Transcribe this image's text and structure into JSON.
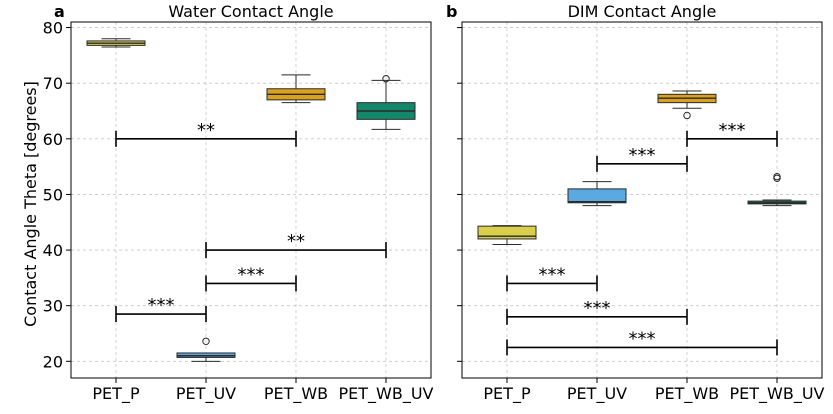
{
  "figure": {
    "ylabel": "Contact Angle Theta [degrees]"
  },
  "chart_data": [
    {
      "type": "box",
      "panel": "a",
      "title": "Water Contact Angle",
      "categories": [
        "PET_P",
        "PET_UV",
        "PET_WB",
        "PET_WB_UV"
      ],
      "ylim": [
        17,
        81
      ],
      "yticks": [
        20,
        30,
        40,
        50,
        60,
        70,
        80
      ],
      "grid": true,
      "colors": [
        "#d9cf4c",
        "#5aa9e0",
        "#d9a11e",
        "#12876a"
      ],
      "boxes": [
        {
          "category": "PET_P",
          "min": 76.5,
          "q1": 76.8,
          "median": 77.2,
          "q3": 77.6,
          "max": 78.0,
          "outliers": []
        },
        {
          "category": "PET_UV",
          "min": 20.0,
          "q1": 20.7,
          "median": 21.0,
          "q3": 21.5,
          "max": 21.5,
          "outliers": [
            23.6
          ]
        },
        {
          "category": "PET_WB",
          "min": 66.5,
          "q1": 67.0,
          "median": 68.0,
          "q3": 69.0,
          "max": 71.5,
          "outliers": []
        },
        {
          "category": "PET_WB_UV",
          "min": 61.7,
          "q1": 63.5,
          "median": 65.0,
          "q3": 66.5,
          "max": 70.5,
          "outliers": [
            70.8
          ]
        }
      ],
      "annotations": [
        {
          "from": "PET_P",
          "to": "PET_WB",
          "y": 60,
          "label": "**"
        },
        {
          "from": "PET_UV",
          "to": "PET_WB_UV",
          "y": 40,
          "label": "**"
        },
        {
          "from": "PET_UV",
          "to": "PET_WB",
          "y": 34,
          "label": "***"
        },
        {
          "from": "PET_P",
          "to": "PET_UV",
          "y": 28.5,
          "label": "***"
        }
      ]
    },
    {
      "type": "box",
      "panel": "b",
      "title": "DIM Contact Angle",
      "categories": [
        "PET_P",
        "PET_UV",
        "PET_WB",
        "PET_WB_UV"
      ],
      "ylim": [
        17,
        81
      ],
      "yticks": [
        20,
        30,
        40,
        50,
        60,
        70,
        80
      ],
      "grid": true,
      "colors": [
        "#d9cf4c",
        "#5aa9e0",
        "#d9a11e",
        "#12876a"
      ],
      "boxes": [
        {
          "category": "PET_P",
          "min": 41.0,
          "q1": 42.0,
          "median": 42.5,
          "q3": 44.3,
          "max": 44.4,
          "outliers": []
        },
        {
          "category": "PET_UV",
          "min": 48.0,
          "q1": 48.5,
          "median": 48.7,
          "q3": 51.0,
          "max": 52.3,
          "outliers": []
        },
        {
          "category": "PET_WB",
          "min": 65.5,
          "q1": 66.5,
          "median": 67.3,
          "q3": 68.0,
          "max": 68.6,
          "outliers": [
            64.2
          ]
        },
        {
          "category": "PET_WB_UV",
          "min": 48.0,
          "q1": 48.3,
          "median": 48.5,
          "q3": 48.8,
          "max": 49.0,
          "outliers": [
            52.9,
            53.2
          ]
        }
      ],
      "annotations": [
        {
          "from": "PET_WB",
          "to": "PET_WB_UV",
          "y": 60,
          "label": "***"
        },
        {
          "from": "PET_UV",
          "to": "PET_WB",
          "y": 55.5,
          "label": "***"
        },
        {
          "from": "PET_P",
          "to": "PET_UV",
          "y": 34,
          "label": "***"
        },
        {
          "from": "PET_P",
          "to": "PET_WB",
          "y": 28,
          "label": "***"
        },
        {
          "from": "PET_P",
          "to": "PET_WB_UV",
          "y": 22.5,
          "label": "***"
        }
      ]
    }
  ]
}
